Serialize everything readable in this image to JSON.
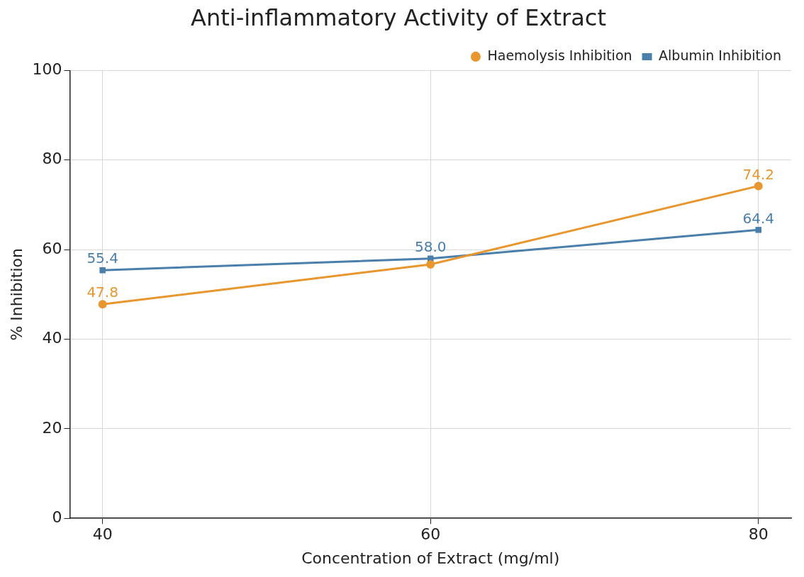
{
  "chart_data": {
    "type": "line",
    "title": "Anti-inflammatory Activity of Extract",
    "xlabel": "Concentration of Extract (mg/ml)",
    "ylabel": "% Inhibition",
    "x": [
      40,
      60,
      80
    ],
    "series": [
      {
        "name": "Haemolysis Inhibition",
        "color": "#e8962e",
        "values": [
          47.8,
          56.7,
          74.2
        ],
        "value_labels": [
          "47.8",
          null,
          "74.2"
        ],
        "marker": "circle"
      },
      {
        "name": "Albumin Inhibition",
        "color": "#4a7fab",
        "values": [
          55.4,
          58.0,
          64.4
        ],
        "value_labels": [
          "55.4",
          "58.0",
          "64.4"
        ],
        "marker": "square"
      }
    ],
    "xlim": [
      38,
      82
    ],
    "xticks": [
      40,
      60,
      80
    ],
    "ylim": [
      0,
      100
    ],
    "yticks": [
      0,
      20,
      40,
      60,
      80,
      100
    ],
    "grid": true,
    "legend": "top right",
    "line_style": "solid"
  }
}
